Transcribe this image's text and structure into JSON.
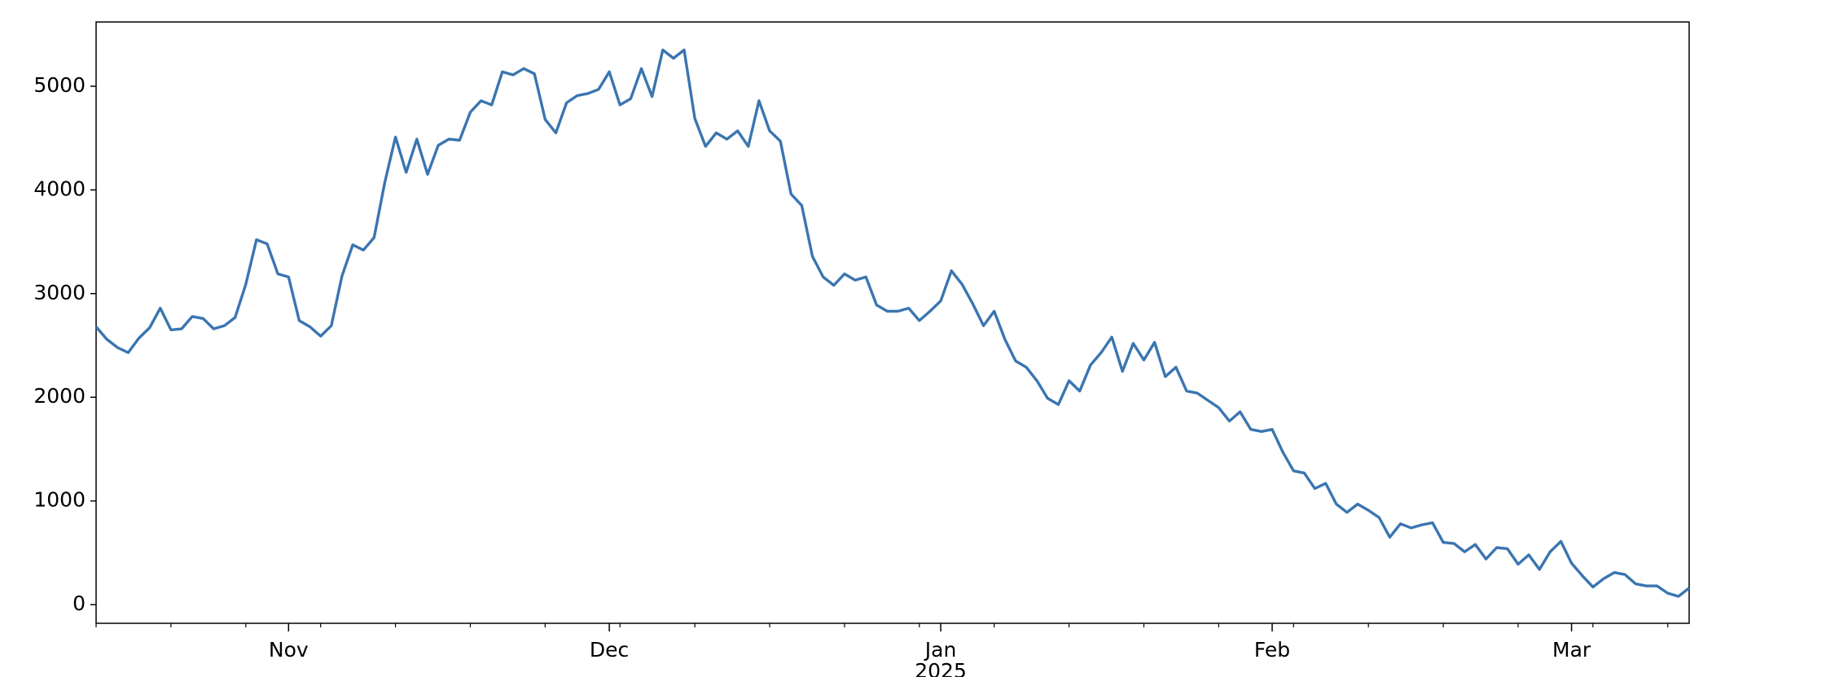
{
  "chart_data": {
    "type": "line",
    "categories": [
      null,
      null,
      null,
      null,
      null,
      null,
      null,
      null,
      null,
      null,
      null,
      null,
      null,
      null,
      null,
      null,
      null,
      null,
      "Nov",
      null,
      null,
      null,
      null,
      null,
      null,
      null,
      null,
      null,
      null,
      null,
      null,
      null,
      null,
      null,
      null,
      null,
      null,
      null,
      null,
      null,
      null,
      null,
      null,
      null,
      null,
      null,
      null,
      null,
      "Dec",
      null,
      null,
      null,
      null,
      null,
      null,
      null,
      null,
      null,
      null,
      null,
      null,
      null,
      null,
      null,
      null,
      null,
      null,
      null,
      null,
      null,
      null,
      null,
      null,
      null,
      null,
      null,
      null,
      null,
      null,
      "Jan",
      null,
      null,
      null,
      null,
      null,
      null,
      null,
      null,
      null,
      null,
      null,
      null,
      null,
      null,
      null,
      null,
      null,
      null,
      null,
      null,
      null,
      null,
      null,
      null,
      null,
      null,
      null,
      null,
      null,
      null,
      "Feb",
      null,
      null,
      null,
      null,
      null,
      null,
      null,
      null,
      null,
      null,
      null,
      null,
      null,
      null,
      null,
      null,
      null,
      null,
      null,
      null,
      null,
      null,
      null,
      null,
      null,
      null,
      null,
      "Mar",
      null,
      null,
      null,
      null,
      null,
      null,
      null,
      null,
      null,
      null,
      null
    ],
    "x_year_label": "2025",
    "values": [
      2680,
      2560,
      2480,
      2430,
      2570,
      2670,
      2860,
      2650,
      2660,
      2780,
      2760,
      2660,
      2690,
      2770,
      3090,
      3520,
      3480,
      3190,
      3160,
      2740,
      2680,
      2590,
      2690,
      3170,
      3470,
      3420,
      3540,
      4070,
      4510,
      4170,
      4490,
      4150,
      4430,
      4490,
      4480,
      4750,
      4860,
      4820,
      5140,
      5110,
      5170,
      5120,
      4680,
      4550,
      4840,
      4910,
      4930,
      4970,
      5140,
      4820,
      4880,
      5170,
      4900,
      5350,
      5270,
      5350,
      4690,
      4420,
      4550,
      4490,
      4570,
      4420,
      4860,
      4570,
      4470,
      3960,
      3850,
      3360,
      3160,
      3080,
      3190,
      3130,
      3160,
      2890,
      2830,
      2830,
      2860,
      2740,
      2830,
      2930,
      3220,
      3090,
      2900,
      2690,
      2830,
      2560,
      2350,
      2290,
      2160,
      1990,
      1930,
      2160,
      2060,
      2310,
      2430,
      2580,
      2250,
      2520,
      2360,
      2530,
      2200,
      2290,
      2060,
      2040,
      1970,
      1900,
      1770,
      1860,
      1690,
      1670,
      1690,
      1470,
      1290,
      1270,
      1120,
      1170,
      970,
      890,
      970,
      910,
      840,
      650,
      780,
      740,
      770,
      790,
      600,
      590,
      510,
      580,
      440,
      550,
      540,
      390,
      480,
      340,
      510,
      610,
      400,
      280,
      170,
      250,
      310,
      290,
      200,
      180,
      180,
      110,
      80,
      160
    ],
    "color": "#3a75b0",
    "ylim": [
      -180,
      5620
    ],
    "yticks": [
      0,
      1000,
      2000,
      3000,
      4000,
      5000
    ],
    "grid": false
  }
}
